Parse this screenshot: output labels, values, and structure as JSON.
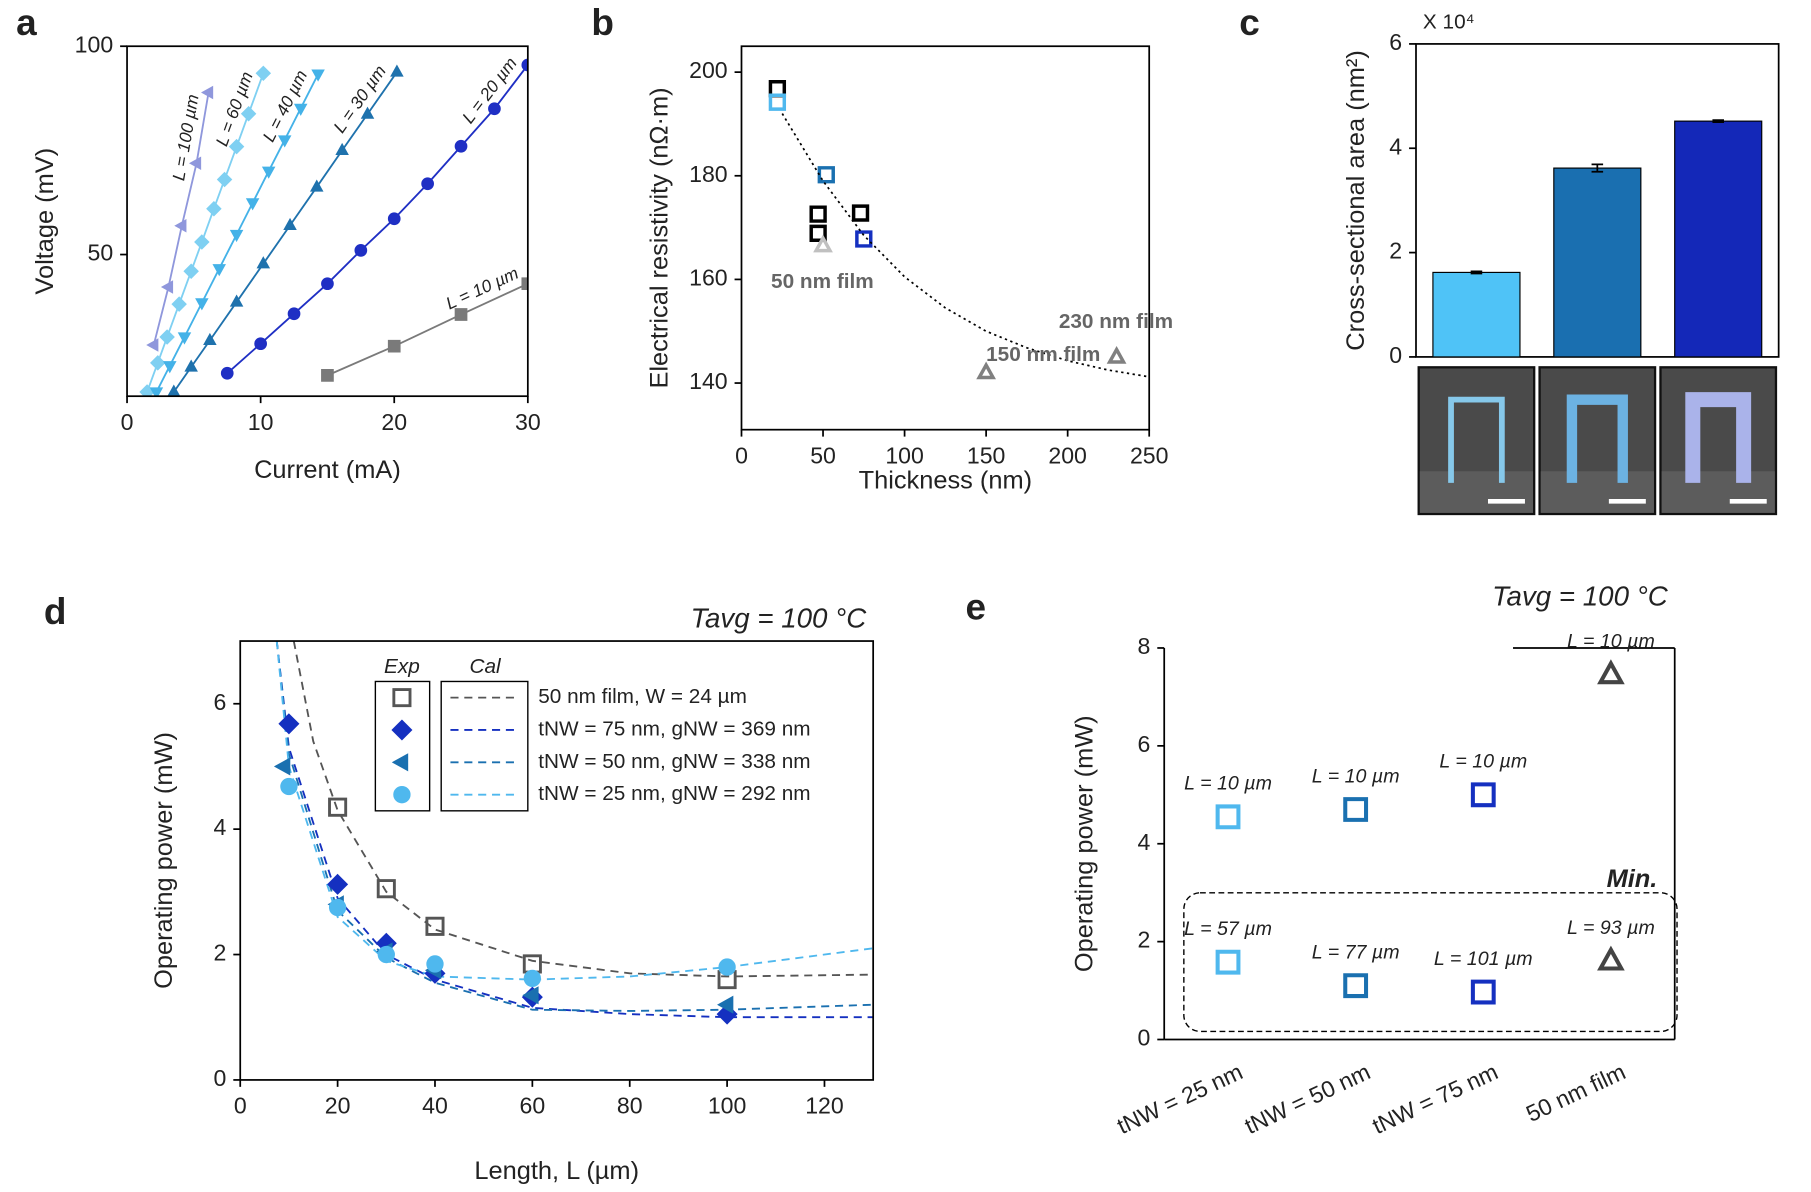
{
  "chart_data": [
    {
      "panel_label": "a",
      "type": "line",
      "xlabel": "Current (mA)",
      "ylabel": "Voltage (mV)",
      "xlim": [
        0,
        30
      ],
      "ylim": [
        16,
        100
      ],
      "xticks": [
        0,
        10,
        20,
        30
      ],
      "yticks": [
        50,
        100
      ],
      "series": [
        {
          "name": "L = 100 µm",
          "color": "#8f97dc",
          "marker": "triangle-left",
          "filled": true,
          "x": [
            2.0,
            3.1,
            4.1,
            5.2,
            6.1
          ],
          "values": [
            28.3,
            42.2,
            56.9,
            71.9,
            88.9
          ]
        },
        {
          "name": "L = 60 µm",
          "color": "#7fd0f2",
          "marker": "diamond",
          "filled": true,
          "x": [
            1.5,
            2.3,
            3.0,
            3.9,
            4.8,
            5.6,
            6.5,
            7.3,
            8.2,
            9.1,
            10.2
          ],
          "values": [
            17,
            24,
            30.2,
            38.1,
            46,
            53,
            61,
            68,
            75.9,
            83.8,
            93.5
          ]
        },
        {
          "name": "L = 40 µm",
          "color": "#44b2e8",
          "marker": "triangle-down",
          "filled": true,
          "x": [
            2.2,
            3.2,
            4.3,
            5.6,
            6.9,
            8.2,
            9.4,
            10.6,
            11.8,
            13.0,
            14.3
          ],
          "values": [
            17,
            23.3,
            30.2,
            38.4,
            46.6,
            54.8,
            62.4,
            70,
            77.5,
            85.1,
            93.3
          ]
        },
        {
          "name": "L = 30 µm",
          "color": "#1f72ad",
          "marker": "triangle-up",
          "filled": true,
          "x": [
            3.5,
            4.8,
            6.2,
            8.2,
            10.2,
            12.2,
            14.2,
            16.1,
            18.0,
            20.2
          ],
          "values": [
            17,
            23,
            29.4,
            38.6,
            47.8,
            57,
            66.2,
            75,
            83.7,
            93.8
          ]
        },
        {
          "name": "L = 20 µm",
          "color": "#1f2fc4",
          "marker": "circle",
          "filled": true,
          "x": [
            7.5,
            10,
            12.5,
            15,
            17.5,
            20,
            22.5,
            25,
            27.5,
            30
          ],
          "values": [
            21.5,
            28.6,
            35.8,
            43,
            51,
            58.6,
            67,
            76,
            85,
            95.5
          ]
        },
        {
          "name": "L = 10 µm",
          "color": "#7a7a7a",
          "marker": "square",
          "filled": true,
          "x": [
            15,
            20,
            25,
            30
          ],
          "values": [
            21,
            28,
            35.6,
            43
          ]
        }
      ]
    },
    {
      "panel_label": "b",
      "type": "scatter",
      "xlabel": "Thickness (nm)",
      "ylabel": "Electrical resistivity (nΩ·m)",
      "xlim": [
        0,
        250
      ],
      "ylim": [
        131,
        205
      ],
      "xticks": [
        0,
        50,
        100,
        150,
        200,
        250
      ],
      "yticks": [
        140,
        160,
        180,
        200
      ],
      "series": [
        {
          "color": "#000000",
          "marker": "square",
          "x": [
            22,
            47,
            47,
            73
          ],
          "values": [
            196.8,
            172.6,
            168.9,
            172.8
          ]
        },
        {
          "color": "#4fb8ee",
          "marker": "square",
          "x": [
            22
          ],
          "values": [
            194.2
          ]
        },
        {
          "color": "#1a70b0",
          "marker": "square",
          "x": [
            52
          ],
          "values": [
            180.2
          ]
        },
        {
          "color": "#1530c0",
          "marker": "square",
          "x": [
            75
          ],
          "values": [
            167.8
          ]
        },
        {
          "name": "50 nm film",
          "color": "#c0c0c0",
          "marker": "triangle-up",
          "x": [
            50
          ],
          "values": [
            166.5
          ]
        },
        {
          "name": "150 nm film",
          "color": "#808080",
          "marker": "triangle-up",
          "x": [
            150
          ],
          "values": [
            142
          ]
        },
        {
          "name": "230 nm film",
          "color": "#808080",
          "marker": "triangle-up",
          "x": [
            230
          ],
          "values": [
            145
          ]
        },
        {
          "color": "#000000",
          "style": "dotted",
          "x": [
            25,
            50,
            75,
            100,
            125,
            150,
            175,
            200,
            225,
            250
          ],
          "values": [
            192,
            179,
            168.5,
            160.5,
            154.5,
            150,
            146.8,
            144.3,
            142.5,
            141.2
          ]
        }
      ]
    },
    {
      "panel_label": "c",
      "type": "bar",
      "ylabel": "Cross-sectional area (nm²)",
      "y_multiplier": "X 10⁴",
      "ylim": [
        0,
        6
      ],
      "yticks": [
        0,
        2,
        4,
        6
      ],
      "values": [
        1.62,
        3.62,
        4.52
      ],
      "errors": [
        0.02,
        0.07,
        0.02
      ],
      "colors": [
        "#4fc3f7",
        "#1a6fb0",
        "#1428b8"
      ]
    },
    {
      "panel_label": "d",
      "type": "line",
      "title": "Tavg = 100 °C",
      "xlabel": "Length, L (µm)",
      "ylabel": "Operating power (mW)",
      "xlim": [
        0,
        130
      ],
      "ylim": [
        0,
        7
      ],
      "xticks": [
        0,
        20,
        40,
        60,
        80,
        100,
        120
      ],
      "yticks": [
        0,
        2,
        4,
        6
      ],
      "legend_headers": [
        "Exp",
        "Cal"
      ],
      "series": [
        {
          "name": "50 nm film, W = 24 µm",
          "color": "#555555",
          "marker": "square",
          "filled": false,
          "x": [
            20,
            30,
            40,
            60,
            100
          ],
          "values": [
            4.35,
            3.05,
            2.45,
            1.85,
            1.6
          ],
          "fit_x": [
            11,
            15,
            20,
            30,
            40,
            60,
            80,
            100,
            130
          ],
          "fit_values": [
            7,
            5.4,
            4.3,
            3.0,
            2.4,
            1.9,
            1.7,
            1.65,
            1.68
          ]
        },
        {
          "name": "tNW = 75 nm, gNW = 369 nm",
          "color": "#1530c0",
          "marker": "diamond",
          "filled": true,
          "x": [
            10,
            20,
            30,
            40,
            60,
            100
          ],
          "values": [
            5.68,
            3.12,
            2.18,
            1.7,
            1.32,
            1.05
          ],
          "fit_x": [
            7.5,
            10,
            20,
            30,
            40,
            60,
            80,
            100,
            130
          ],
          "fit_values": [
            7,
            5.3,
            2.9,
            2.0,
            1.6,
            1.15,
            1.05,
            1.0,
            1.0
          ]
        },
        {
          "name": "tNW = 50 nm, gNW = 338 nm",
          "color": "#1a70b0",
          "marker": "triangle-left",
          "filled": true,
          "x": [
            9,
            20,
            30,
            40,
            60,
            100
          ],
          "values": [
            5.0,
            2.8,
            2.05,
            1.75,
            1.35,
            1.2
          ],
          "fit_x": [
            7.5,
            10,
            20,
            30,
            40,
            60,
            80,
            100,
            130
          ],
          "fit_values": [
            7,
            5.2,
            2.7,
            1.95,
            1.55,
            1.12,
            1.1,
            1.12,
            1.2
          ]
        },
        {
          "name": "tNW = 25 nm, gNW = 292 nm",
          "color": "#4fb8ee",
          "marker": "circle",
          "filled": true,
          "x": [
            10,
            20,
            30,
            40,
            60,
            100
          ],
          "values": [
            4.68,
            2.75,
            2.0,
            1.85,
            1.62,
            1.8
          ],
          "fit_x": [
            7.5,
            10,
            20,
            30,
            40,
            60,
            80,
            100,
            130
          ],
          "fit_values": [
            7,
            5.0,
            2.6,
            1.9,
            1.65,
            1.6,
            1.65,
            1.8,
            2.1
          ]
        }
      ]
    },
    {
      "panel_label": "e",
      "type": "scatter",
      "title": "Tavg = 100 °C",
      "ylabel": "Operating power (mW)",
      "annotation": "Min.",
      "ylim": [
        0,
        8
      ],
      "yticks": [
        0,
        2,
        4,
        6,
        8
      ],
      "categories": [
        "tNW = 25 nm",
        "tNW = 50 nm",
        "tNW = 75 nm",
        "50 nm film"
      ],
      "series": [
        {
          "values": [
            4.55,
            4.7,
            5.0,
            7.45
          ],
          "colors": [
            "#4fb8ee",
            "#1a70b0",
            "#1530c0",
            "#444444"
          ],
          "markers": [
            "square",
            "square",
            "square",
            "triangle-up"
          ],
          "point_labels": [
            "L = 10 µm",
            "L = 10 µm",
            "L = 10 µm",
            "L = 10 µm"
          ]
        },
        {
          "values": [
            1.58,
            1.1,
            0.97,
            1.6
          ],
          "colors": [
            "#4fb8ee",
            "#1a70b0",
            "#1530c0",
            "#444444"
          ],
          "markers": [
            "square",
            "square",
            "square",
            "triangle-up"
          ],
          "point_labels": [
            "L = 57 µm",
            "L = 77 µm",
            "L = 101 µm",
            "L = 93 µm"
          ]
        }
      ]
    }
  ]
}
